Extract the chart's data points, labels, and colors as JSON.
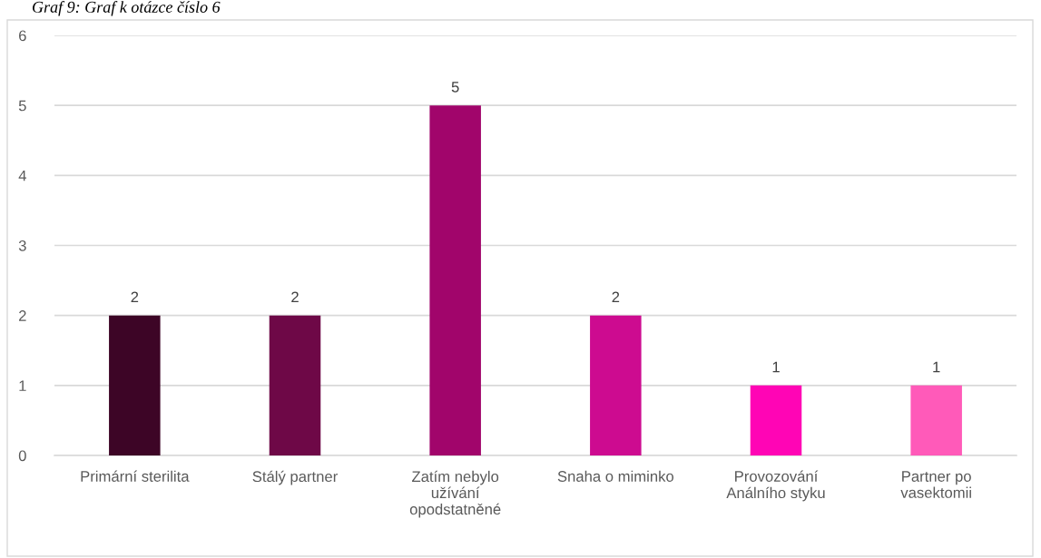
{
  "chart_data": {
    "type": "bar",
    "title": "Graf 9: Graf k otázce číslo 6",
    "categories": [
      "Primární sterilita",
      "Stálý partner",
      "Zatím nebylo užívání opodstatněné",
      "Snaha o miminko",
      "Provozování Análního styku",
      "Partner po vasektomii"
    ],
    "values": [
      2,
      2,
      5,
      2,
      1,
      1
    ],
    "colors": [
      "#3d0526",
      "#6e0847",
      "#a1056b",
      "#cd0b90",
      "#ff05b5",
      "#ff5ab9"
    ],
    "ylim": [
      0,
      6
    ],
    "yticks": [
      0,
      1,
      2,
      3,
      4,
      5,
      6
    ],
    "grid": "y",
    "data_labels": true
  }
}
